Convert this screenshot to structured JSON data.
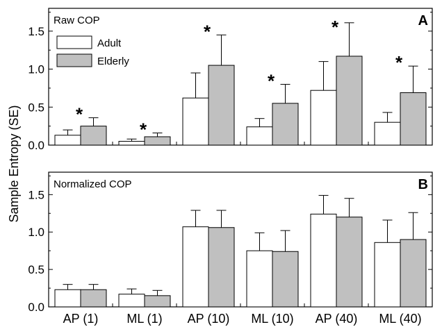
{
  "chart_data": {
    "type": "bar",
    "ylabel": "Sample Entropy (SE)",
    "categories": [
      "AP (1)",
      "ML (1)",
      "AP (10)",
      "ML (10)",
      "AP (40)",
      "ML (40)"
    ],
    "legend": {
      "placement": "top-left",
      "entries": [
        "Adult",
        "Elderly"
      ]
    },
    "colors": {
      "Adult": "#ffffff",
      "Elderly": "#c0c0c0"
    },
    "panels": [
      {
        "title": "Raw COP",
        "letter": "A",
        "ylim": [
          0,
          1.8
        ],
        "yticks": [
          "0.0",
          "0.5",
          "1.0",
          "1.5"
        ],
        "series": [
          {
            "name": "Adult",
            "values": [
              0.13,
              0.05,
              0.62,
              0.24,
              0.72,
              0.3
            ],
            "errors": [
              0.07,
              0.03,
              0.33,
              0.11,
              0.38,
              0.13
            ]
          },
          {
            "name": "Elderly",
            "values": [
              0.25,
              0.11,
              1.05,
              0.55,
              1.17,
              0.69
            ],
            "errors": [
              0.11,
              0.05,
              0.4,
              0.25,
              0.44,
              0.35
            ]
          }
        ],
        "significance": [
          "*",
          "*",
          "*",
          "*",
          "*",
          "*"
        ]
      },
      {
        "title": "Normalized COP",
        "letter": "B",
        "ylim": [
          0,
          1.8
        ],
        "yticks": [
          "0.0",
          "0.5",
          "1.0",
          "1.5"
        ],
        "series": [
          {
            "name": "Adult",
            "values": [
              0.23,
              0.17,
              1.07,
              0.75,
              1.24,
              0.86
            ],
            "errors": [
              0.07,
              0.07,
              0.22,
              0.24,
              0.25,
              0.3
            ]
          },
          {
            "name": "Elderly",
            "values": [
              0.23,
              0.15,
              1.06,
              0.74,
              1.2,
              0.9
            ],
            "errors": [
              0.07,
              0.07,
              0.23,
              0.28,
              0.25,
              0.36
            ]
          }
        ],
        "significance": []
      }
    ]
  }
}
